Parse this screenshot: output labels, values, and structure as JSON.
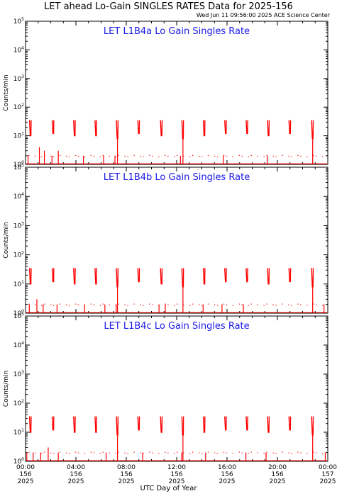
{
  "title": "LET ahead Lo-Gain SINGLES RATES Data for 2025-156",
  "timestamp": "Wed Jun 11 09:56:00 2025 ACE Science Center",
  "chart_data": {
    "type": "line",
    "xlabel": "UTC Day of Year",
    "ylabel": "Counts/min",
    "yscale": "log",
    "ylim": [
      1,
      100000
    ],
    "xlim": [
      0,
      24
    ],
    "ytick_exponents": [
      "0",
      "1",
      "2",
      "3",
      "4",
      "5"
    ],
    "x_ticks": [
      {
        "x": 0,
        "time": "00:00",
        "doy": "156",
        "year": "2025"
      },
      {
        "x": 4,
        "time": "04:00",
        "doy": "156",
        "year": "2025"
      },
      {
        "x": 8,
        "time": "08:00",
        "doy": "156",
        "year": "2025"
      },
      {
        "x": 12,
        "time": "12:00",
        "doy": "156",
        "year": "2025"
      },
      {
        "x": 16,
        "time": "16:00",
        "doy": "156",
        "year": "2025"
      },
      {
        "x": 20,
        "time": "20:00",
        "doy": "156",
        "year": "2025"
      },
      {
        "x": 24,
        "time": "00:00",
        "doy": "157",
        "year": "2025"
      }
    ],
    "color": "#ff0000",
    "panels": [
      {
        "label": "LET L1B4a Lo Gain Singles Rate",
        "spikes": [
          {
            "x": 0.4,
            "peak": 35,
            "low": 10
          },
          {
            "x": 2.2,
            "peak": 35,
            "low": 12
          },
          {
            "x": 3.9,
            "peak": 35,
            "low": 10
          },
          {
            "x": 5.6,
            "peak": 35,
            "low": 10
          },
          {
            "x": 7.3,
            "peak": 35,
            "low": 8
          },
          {
            "x": 9.0,
            "peak": 35,
            "low": 12
          },
          {
            "x": 10.8,
            "peak": 35,
            "low": 10
          },
          {
            "x": 12.5,
            "peak": 35,
            "low": 8
          },
          {
            "x": 14.2,
            "peak": 35,
            "low": 10
          },
          {
            "x": 15.9,
            "peak": 35,
            "low": 12
          },
          {
            "x": 17.6,
            "peak": 35,
            "low": 12
          },
          {
            "x": 19.3,
            "peak": 35,
            "low": 10
          },
          {
            "x": 21.0,
            "peak": 35,
            "low": 12
          },
          {
            "x": 22.8,
            "peak": 35,
            "low": 8
          }
        ],
        "bursts": [
          {
            "x": 0.2,
            "peak": 2
          },
          {
            "x": 1.1,
            "peak": 4
          },
          {
            "x": 1.5,
            "peak": 3
          },
          {
            "x": 2.1,
            "peak": 2
          },
          {
            "x": 2.6,
            "peak": 3
          },
          {
            "x": 4.6,
            "peak": 2
          },
          {
            "x": 6.2,
            "peak": 2
          },
          {
            "x": 7.1,
            "peak": 2
          },
          {
            "x": 12.3,
            "peak": 2
          },
          {
            "x": 15.7,
            "peak": 2
          },
          {
            "x": 19.2,
            "peak": 2
          }
        ]
      },
      {
        "label": "LET L1B4b Lo Gain Singles Rate",
        "spikes": [
          {
            "x": 0.4,
            "peak": 35,
            "low": 10
          },
          {
            "x": 2.2,
            "peak": 35,
            "low": 12
          },
          {
            "x": 3.9,
            "peak": 35,
            "low": 10
          },
          {
            "x": 5.6,
            "peak": 35,
            "low": 10
          },
          {
            "x": 7.3,
            "peak": 35,
            "low": 8
          },
          {
            "x": 9.0,
            "peak": 35,
            "low": 12
          },
          {
            "x": 10.8,
            "peak": 35,
            "low": 10
          },
          {
            "x": 12.5,
            "peak": 35,
            "low": 8
          },
          {
            "x": 14.2,
            "peak": 35,
            "low": 10
          },
          {
            "x": 15.9,
            "peak": 35,
            "low": 12
          },
          {
            "x": 17.6,
            "peak": 35,
            "low": 12
          },
          {
            "x": 19.3,
            "peak": 35,
            "low": 10
          },
          {
            "x": 21.0,
            "peak": 35,
            "low": 12
          },
          {
            "x": 22.8,
            "peak": 35,
            "low": 8
          }
        ],
        "bursts": [
          {
            "x": 0.3,
            "peak": 2
          },
          {
            "x": 0.9,
            "peak": 3
          },
          {
            "x": 1.4,
            "peak": 2
          },
          {
            "x": 2.5,
            "peak": 2
          },
          {
            "x": 4.7,
            "peak": 2
          },
          {
            "x": 6.3,
            "peak": 2
          },
          {
            "x": 7.2,
            "peak": 2
          },
          {
            "x": 10.6,
            "peak": 2
          },
          {
            "x": 11.1,
            "peak": 2
          },
          {
            "x": 14.1,
            "peak": 2
          },
          {
            "x": 15.6,
            "peak": 2
          },
          {
            "x": 17.3,
            "peak": 2
          },
          {
            "x": 23.7,
            "peak": 2
          }
        ]
      },
      {
        "label": "LET L1B4c Lo Gain Singles Rate",
        "spikes": [
          {
            "x": 0.4,
            "peak": 35,
            "low": 10
          },
          {
            "x": 2.2,
            "peak": 35,
            "low": 12
          },
          {
            "x": 3.9,
            "peak": 35,
            "low": 10
          },
          {
            "x": 5.6,
            "peak": 35,
            "low": 10
          },
          {
            "x": 7.3,
            "peak": 35,
            "low": 8
          },
          {
            "x": 9.0,
            "peak": 35,
            "low": 12
          },
          {
            "x": 10.8,
            "peak": 35,
            "low": 10
          },
          {
            "x": 12.5,
            "peak": 35,
            "low": 8
          },
          {
            "x": 14.2,
            "peak": 35,
            "low": 10
          },
          {
            "x": 15.9,
            "peak": 35,
            "low": 12
          },
          {
            "x": 17.6,
            "peak": 35,
            "low": 12
          },
          {
            "x": 19.3,
            "peak": 35,
            "low": 10
          },
          {
            "x": 21.0,
            "peak": 35,
            "low": 12
          },
          {
            "x": 22.8,
            "peak": 35,
            "low": 8
          }
        ],
        "bursts": [
          {
            "x": 0.1,
            "peak": 2
          },
          {
            "x": 0.6,
            "peak": 2
          },
          {
            "x": 1.2,
            "peak": 2
          },
          {
            "x": 1.8,
            "peak": 3
          },
          {
            "x": 2.6,
            "peak": 2
          },
          {
            "x": 6.4,
            "peak": 2
          },
          {
            "x": 9.3,
            "peak": 2
          },
          {
            "x": 12.4,
            "peak": 2
          },
          {
            "x": 14.3,
            "peak": 2
          },
          {
            "x": 17.5,
            "peak": 2
          },
          {
            "x": 19.1,
            "peak": 2
          },
          {
            "x": 23.8,
            "peak": 2
          }
        ]
      }
    ]
  }
}
